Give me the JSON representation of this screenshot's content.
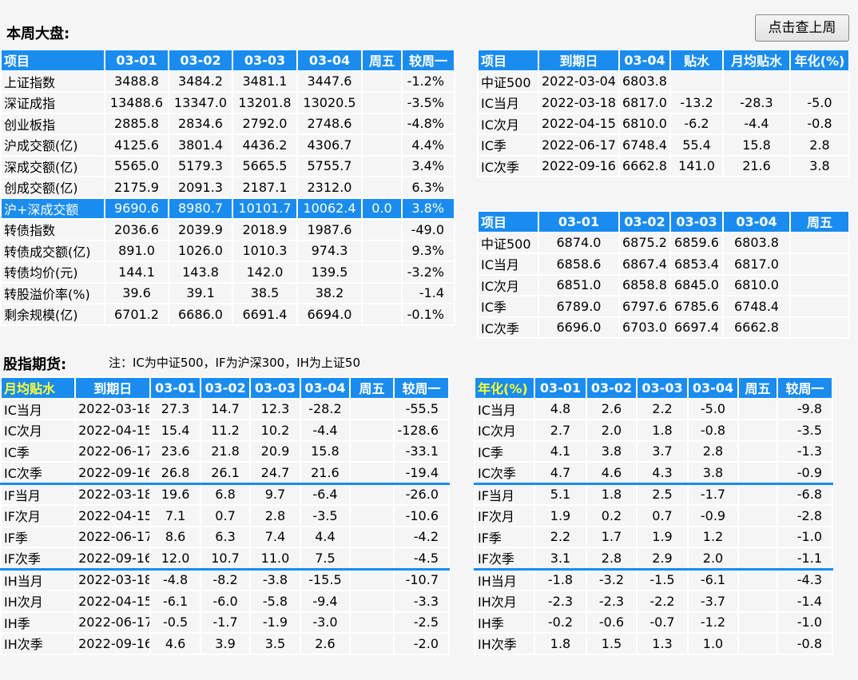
{
  "header": {
    "title": "本周大盘:",
    "last_week_button": "点击查上周"
  },
  "market": {
    "headers": [
      "项目",
      "03-01",
      "03-02",
      "03-03",
      "03-04",
      "周五",
      "较周一"
    ],
    "rows": [
      [
        "上证指数",
        "3488.8",
        "3484.2",
        "3481.1",
        "3447.6",
        "",
        "-1.2%"
      ],
      [
        "深证成指",
        "13488.6",
        "13347.0",
        "13201.8",
        "13020.5",
        "",
        "-3.5%"
      ],
      [
        "创业板指",
        "2885.8",
        "2834.6",
        "2792.0",
        "2748.6",
        "",
        "-4.8%"
      ],
      [
        "沪成交额(亿)",
        "4125.6",
        "3801.4",
        "4436.2",
        "4306.7",
        "",
        "4.4%"
      ],
      [
        "深成交额(亿)",
        "5565.0",
        "5179.3",
        "5665.5",
        "5755.7",
        "",
        "3.4%"
      ],
      [
        "创成交额(亿)",
        "2175.9",
        "2091.3",
        "2187.1",
        "2312.0",
        "",
        "6.3%"
      ],
      [
        "沪+深成交额",
        "9690.6",
        "8980.7",
        "10101.7",
        "10062.4",
        "0.0",
        "3.8%"
      ],
      [
        "转债指数",
        "2036.6",
        "2039.9",
        "2018.9",
        "1987.6",
        "",
        "-49.0"
      ],
      [
        "转债成交额(亿)",
        "891.0",
        "1026.0",
        "1010.3",
        "974.3",
        "",
        "9.3%"
      ],
      [
        "转债均价(元)",
        "144.1",
        "143.8",
        "142.0",
        "139.5",
        "",
        "-3.2%"
      ],
      [
        "转股溢价率(%)",
        "39.6",
        "39.1",
        "38.5",
        "38.2",
        "",
        "-1.4"
      ],
      [
        "剩余规模(亿)",
        "6701.2",
        "6686.0",
        "6691.4",
        "6694.0",
        "",
        "-0.1%"
      ]
    ]
  },
  "basis": {
    "headers": [
      "项目",
      "到期日",
      "03-04",
      "贴水",
      "月均贴水",
      "年化(%)"
    ],
    "rows": [
      [
        "中证500",
        "2022-03-04",
        "6803.8",
        "",
        "",
        ""
      ],
      [
        "IC当月",
        "2022-03-18",
        "6817.0",
        "-13.2",
        "-28.3",
        "-5.0"
      ],
      [
        "IC次月",
        "2022-04-15",
        "6810.0",
        "-6.2",
        "-4.4",
        "-0.8"
      ],
      [
        "IC季",
        "2022-06-17",
        "6748.4",
        "55.4",
        "15.8",
        "2.8"
      ],
      [
        "IC次季",
        "2022-09-16",
        "6662.8",
        "141.0",
        "21.6",
        "3.8"
      ]
    ]
  },
  "ic_prices": {
    "headers": [
      "项目",
      "03-01",
      "03-02",
      "03-03",
      "03-04",
      "周五"
    ],
    "rows": [
      [
        "中证500",
        "6874.0",
        "6875.2",
        "6859.6",
        "6803.8",
        ""
      ],
      [
        "IC当月",
        "6858.6",
        "6867.4",
        "6853.4",
        "6817.0",
        ""
      ],
      [
        "IC次月",
        "6851.0",
        "6858.8",
        "6845.0",
        "6810.0",
        ""
      ],
      [
        "IC季",
        "6789.0",
        "6797.6",
        "6785.6",
        "6748.4",
        ""
      ],
      [
        "IC次季",
        "6696.0",
        "6703.0",
        "6697.4",
        "6662.8",
        ""
      ]
    ]
  },
  "futures": {
    "title": "股指期货:",
    "note": "注：IC为中证500，IF为沪深300，IH为上证50"
  },
  "monthly": {
    "headers": [
      "月均贴水",
      "到期日",
      "03-01",
      "03-02",
      "03-03",
      "03-04",
      "周五",
      "较周一"
    ],
    "rows": [
      [
        "IC当月",
        "2022-03-18",
        "27.3",
        "14.7",
        "12.3",
        "-28.2",
        "",
        "-55.5"
      ],
      [
        "IC次月",
        "2022-04-15",
        "15.4",
        "11.2",
        "10.2",
        "-4.4",
        "",
        "-128.6"
      ],
      [
        "IC季",
        "2022-06-17",
        "23.6",
        "21.8",
        "20.9",
        "15.8",
        "",
        "-33.1"
      ],
      [
        "IC次季",
        "2022-09-16",
        "26.8",
        "26.1",
        "24.7",
        "21.6",
        "",
        "-19.4"
      ],
      [
        "IF当月",
        "2022-03-18",
        "19.6",
        "6.8",
        "9.7",
        "-6.4",
        "",
        "-26.0"
      ],
      [
        "IF次月",
        "2022-04-15",
        "7.1",
        "0.7",
        "2.8",
        "-3.5",
        "",
        "-10.6"
      ],
      [
        "IF季",
        "2022-06-17",
        "8.6",
        "6.3",
        "7.4",
        "4.4",
        "",
        "-4.2"
      ],
      [
        "IF次季",
        "2022-09-16",
        "12.0",
        "10.7",
        "11.0",
        "7.5",
        "",
        "-4.5"
      ],
      [
        "IH当月",
        "2022-03-18",
        "-4.8",
        "-8.2",
        "-3.8",
        "-15.5",
        "",
        "-10.7"
      ],
      [
        "IH次月",
        "2022-04-15",
        "-6.1",
        "-6.0",
        "-5.8",
        "-9.4",
        "",
        "-3.3"
      ],
      [
        "IH季",
        "2022-06-17",
        "-0.5",
        "-1.7",
        "-1.9",
        "-3.0",
        "",
        "-2.5"
      ],
      [
        "IH次季",
        "2022-09-16",
        "4.6",
        "3.9",
        "3.5",
        "2.6",
        "",
        "-2.0"
      ]
    ]
  },
  "annual": {
    "headers": [
      "年化(%)",
      "03-01",
      "03-02",
      "03-03",
      "03-04",
      "周五",
      "较周一"
    ],
    "rows": [
      [
        "IC当月",
        "4.8",
        "2.6",
        "2.2",
        "-5.0",
        "",
        "-9.8"
      ],
      [
        "IC次月",
        "2.7",
        "2.0",
        "1.8",
        "-0.8",
        "",
        "-3.5"
      ],
      [
        "IC季",
        "4.1",
        "3.8",
        "3.7",
        "2.8",
        "",
        "-1.3"
      ],
      [
        "IC次季",
        "4.7",
        "4.6",
        "4.3",
        "3.8",
        "",
        "-0.9"
      ],
      [
        "IF当月",
        "5.1",
        "1.8",
        "2.5",
        "-1.7",
        "",
        "-6.8"
      ],
      [
        "IF次月",
        "1.9",
        "0.2",
        "0.7",
        "-0.9",
        "",
        "-2.8"
      ],
      [
        "IF季",
        "2.2",
        "1.7",
        "1.9",
        "1.2",
        "",
        "-1.0"
      ],
      [
        "IF次季",
        "3.1",
        "2.8",
        "2.9",
        "2.0",
        "",
        "-1.1"
      ],
      [
        "IH当月",
        "-1.8",
        "-3.2",
        "-1.5",
        "-6.1",
        "",
        "-4.3"
      ],
      [
        "IH次月",
        "-2.3",
        "-2.3",
        "-2.2",
        "-3.7",
        "",
        "-1.4"
      ],
      [
        "IH季",
        "-0.2",
        "-0.6",
        "-0.7",
        "-1.2",
        "",
        "-1.0"
      ],
      [
        "IH次季",
        "1.8",
        "1.5",
        "1.3",
        "1.0",
        "",
        "-0.8"
      ]
    ]
  },
  "colors": {
    "header_blue": "#1a8cf0",
    "header_yellow": "#ffff33"
  }
}
